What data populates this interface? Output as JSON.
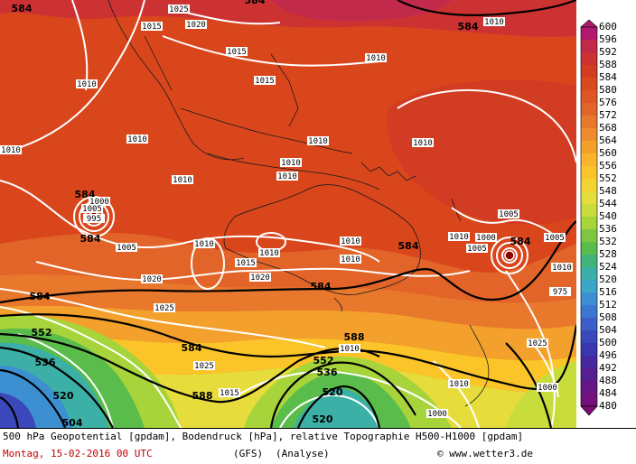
{
  "caption": {
    "line1": "500 hPa Geopotential [gpdam], Bodendruck [hPa], relative Topographie H500-H1000 [gpdam]",
    "date": "Montag, 15-02-2016  00 UTC",
    "model": "(GFS)",
    "mode": "(Analyse)",
    "copyright": "© www.wetter3.de"
  },
  "legend": {
    "levels": [
      600,
      596,
      592,
      588,
      584,
      580,
      576,
      572,
      568,
      564,
      560,
      556,
      552,
      548,
      544,
      540,
      536,
      532,
      528,
      524,
      520,
      516,
      512,
      508,
      504,
      500,
      496,
      492,
      488,
      484,
      480
    ],
    "colors": [
      "#b0196e",
      "#c22a4c",
      "#cc3232",
      "#d23c22",
      "#d94a1e",
      "#de5622",
      "#e26428",
      "#e8782c",
      "#ee8c2c",
      "#f3a12c",
      "#f8b42a",
      "#fbc52a",
      "#f5d234",
      "#e6dc3c",
      "#c8dc3c",
      "#a6d43a",
      "#7ec640",
      "#5abc4a",
      "#42b47a",
      "#3cb0a6",
      "#3ca6c8",
      "#3c90d2",
      "#3c78d2",
      "#3c5ec8",
      "#3a48bc",
      "#3a36b0",
      "#46289e",
      "#561e90",
      "#661684",
      "#74107a",
      "#7e0c72"
    ]
  },
  "geopotential_labels": [
    "584",
    "584",
    "584",
    "584",
    "584",
    "584",
    "584",
    "584",
    "584",
    "584",
    "588",
    "588",
    "552",
    "552",
    "536",
    "536",
    "520",
    "520",
    "504",
    "520"
  ],
  "pressure_labels": [
    "1025",
    "1020",
    "1015",
    "1015",
    "1015",
    "1010",
    "1010",
    "1010",
    "1010",
    "1010",
    "1010",
    "1010",
    "1010",
    "1010",
    "1010",
    "1010",
    "1010",
    "1010",
    "1010",
    "1010",
    "1005",
    "1005",
    "1005",
    "1005",
    "1015",
    "1020",
    "1020",
    "1025",
    "1025",
    "1025",
    "1015",
    "1010",
    "1010",
    "1010",
    "1000",
    "1000",
    "1000",
    "1000",
    "1005",
    "995",
    "975"
  ]
}
